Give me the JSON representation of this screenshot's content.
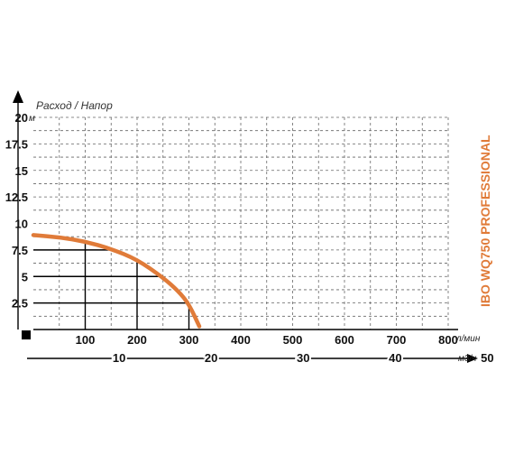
{
  "chart_data": {
    "type": "line",
    "title": "Расход / Напор",
    "product_label": "IBO WQ750 PROFESSIONAL",
    "y_unit": "м",
    "x_unit": "л/мин",
    "x2_unit": "м3/ч",
    "y_ticks": [
      "2.5",
      "5",
      "7.5",
      "10",
      "12.5",
      "15",
      "17.5",
      "20"
    ],
    "x_ticks": [
      "100",
      "200",
      "300",
      "400",
      "500",
      "600",
      "700",
      "800"
    ],
    "x2_ticks": [
      "10",
      "20",
      "30",
      "40",
      "50"
    ],
    "xlim": [
      0,
      800
    ],
    "ylim": [
      0,
      20
    ],
    "x2lim": [
      0,
      48
    ],
    "grid": true,
    "series": [
      {
        "x": [
          0,
          50,
          100,
          150,
          200,
          250,
          280,
          300,
          320
        ],
        "y": [
          8.9,
          8.7,
          8.3,
          7.6,
          6.6,
          4.9,
          3.6,
          2.4,
          0.3
        ]
      }
    ],
    "reference_points": [
      {
        "x": 150,
        "y": 7.5
      },
      {
        "x": 250,
        "y": 5
      },
      {
        "x": 300,
        "y": 2.5
      }
    ],
    "colors": {
      "curve": "#e07b39",
      "product_label": "#e07b39"
    }
  }
}
